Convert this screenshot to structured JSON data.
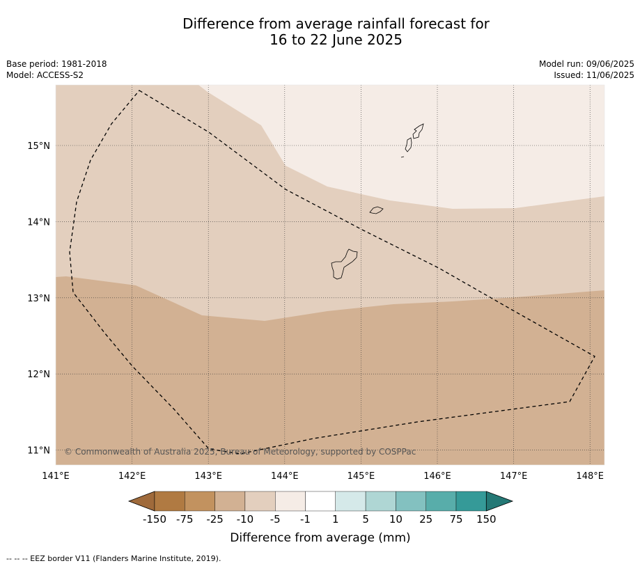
{
  "title_line1": "Difference from average rainfall forecast for",
  "title_line2": "16 to 22 June 2025",
  "meta": {
    "base_period": "Base period: 1981-2018",
    "model": "Model: ACCESS-S2",
    "model_run": "Model run: 09/06/2025",
    "issued": "Issued: 11/06/2025"
  },
  "map": {
    "lat_labels": [
      "15°N",
      "14°N",
      "13°N",
      "12°N",
      "11°N"
    ],
    "lon_labels": [
      "141°E",
      "142°E",
      "143°E",
      "144°E",
      "145°E",
      "146°E",
      "147°E",
      "148°E"
    ],
    "lon_range": [
      141,
      148.2
    ],
    "lat_range": [
      10.8,
      15.8
    ],
    "copyright": "© Commonwealth of Australia 2025, Bureau of Meteorology, supported by COSPPac",
    "region_colors": {
      "near_average": "#f5ece6",
      "minus_5_to_minus_10": "#e3cfbe",
      "minus_10_to_minus_25": "#d2b193"
    }
  },
  "colorbar": {
    "tick_labels": [
      "-150",
      "-75",
      "-25",
      "-10",
      "-5",
      "-1",
      "1",
      "5",
      "10",
      "25",
      "75",
      "150"
    ],
    "colors": [
      "#9f6a3b",
      "#b07a42",
      "#c2925f",
      "#d2b193",
      "#e3cfbe",
      "#f5ece6",
      "#ffffff",
      "#d5e9e9",
      "#afd6d4",
      "#83c1c0",
      "#58adaa",
      "#359a98",
      "#247875"
    ],
    "label": "Difference from average (mm)"
  },
  "footer": "--  --  -- EEZ border V11 (Flanders Marine Institute, 2019)."
}
